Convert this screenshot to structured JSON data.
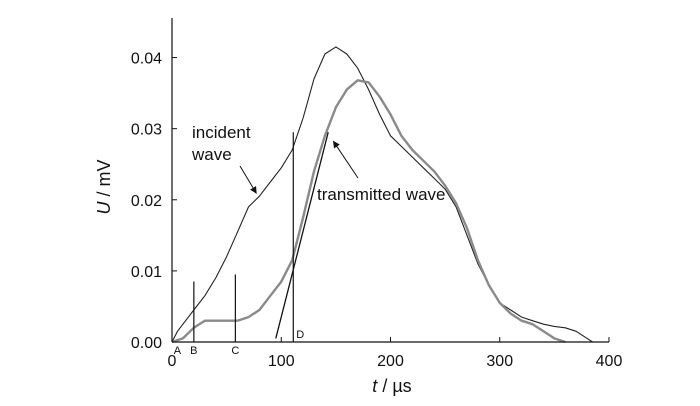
{
  "chart_data": {
    "type": "line",
    "xlabel": {
      "symbol": "t",
      "unit": " / µs"
    },
    "ylabel": {
      "symbol": "U",
      "unit": " / mV"
    },
    "xlim": [
      0,
      400
    ],
    "ylim": [
      0,
      0.045
    ],
    "xticks": [
      0,
      100,
      200,
      300,
      400
    ],
    "yticks": [
      0.0,
      0.01,
      0.02,
      0.03,
      0.04
    ],
    "xtick_labels": [
      "0",
      "100",
      "200",
      "300",
      "400"
    ],
    "ytick_labels": [
      "0.00",
      "0.01",
      "0.02",
      "0.03",
      "0.04"
    ],
    "grid": false,
    "series": [
      {
        "name": "incident wave",
        "color": "#222222",
        "x": [
          0,
          5,
          10,
          15,
          20,
          30,
          40,
          50,
          60,
          70,
          80,
          90,
          100,
          110,
          120,
          130,
          140,
          150,
          160,
          170,
          180,
          190,
          200,
          210,
          220,
          230,
          240,
          250,
          260,
          270,
          280,
          290,
          300,
          310,
          320,
          330,
          340,
          350,
          360,
          370,
          380,
          385
        ],
        "y": [
          0.0,
          0.0015,
          0.0025,
          0.0035,
          0.0045,
          0.0065,
          0.009,
          0.012,
          0.0155,
          0.019,
          0.0205,
          0.0225,
          0.0245,
          0.027,
          0.0315,
          0.037,
          0.0405,
          0.0415,
          0.0405,
          0.0385,
          0.0355,
          0.032,
          0.029,
          0.0275,
          0.026,
          0.0245,
          0.023,
          0.0215,
          0.019,
          0.015,
          0.011,
          0.008,
          0.0055,
          0.0045,
          0.0035,
          0.003,
          0.0025,
          0.0022,
          0.002,
          0.0015,
          0.0005,
          0.0
        ]
      },
      {
        "name": "transmitted wave",
        "color": "#8a8a8a",
        "x": [
          0,
          10,
          20,
          30,
          40,
          50,
          60,
          70,
          80,
          90,
          100,
          110,
          120,
          130,
          140,
          150,
          160,
          170,
          180,
          190,
          200,
          210,
          220,
          230,
          240,
          250,
          260,
          270,
          280,
          290,
          300,
          310,
          320,
          330,
          340,
          350,
          360
        ],
        "y": [
          0.0,
          0.0005,
          0.002,
          0.003,
          0.003,
          0.003,
          0.003,
          0.0035,
          0.0045,
          0.0065,
          0.0085,
          0.0115,
          0.0175,
          0.024,
          0.029,
          0.033,
          0.0355,
          0.0368,
          0.0365,
          0.0345,
          0.032,
          0.029,
          0.027,
          0.0255,
          0.024,
          0.022,
          0.0195,
          0.016,
          0.0115,
          0.008,
          0.0055,
          0.004,
          0.003,
          0.0025,
          0.0015,
          0.0005,
          0.0
        ]
      }
    ],
    "vertical_markers": [
      {
        "label": "A",
        "x": 5,
        "y_top": 0.0
      },
      {
        "label": "B",
        "x": 20,
        "y_top": 0.0085
      },
      {
        "label": "C",
        "x": 58,
        "y_top": 0.0095
      },
      {
        "label": "D",
        "x": 111,
        "y_top": 0.0295
      }
    ],
    "tangent_line": {
      "x1": 95,
      "y1": 0.0005,
      "x2": 143,
      "y2": 0.0295
    },
    "annotations": [
      {
        "id": "incident",
        "lines": [
          "incident",
          "wave"
        ],
        "arrow_to": {
          "x": 79,
          "y": 0.0205
        }
      },
      {
        "id": "transmitted",
        "lines": [
          "transmitted wave"
        ],
        "arrow_to": {
          "x": 145,
          "y": 0.0285
        }
      }
    ]
  }
}
